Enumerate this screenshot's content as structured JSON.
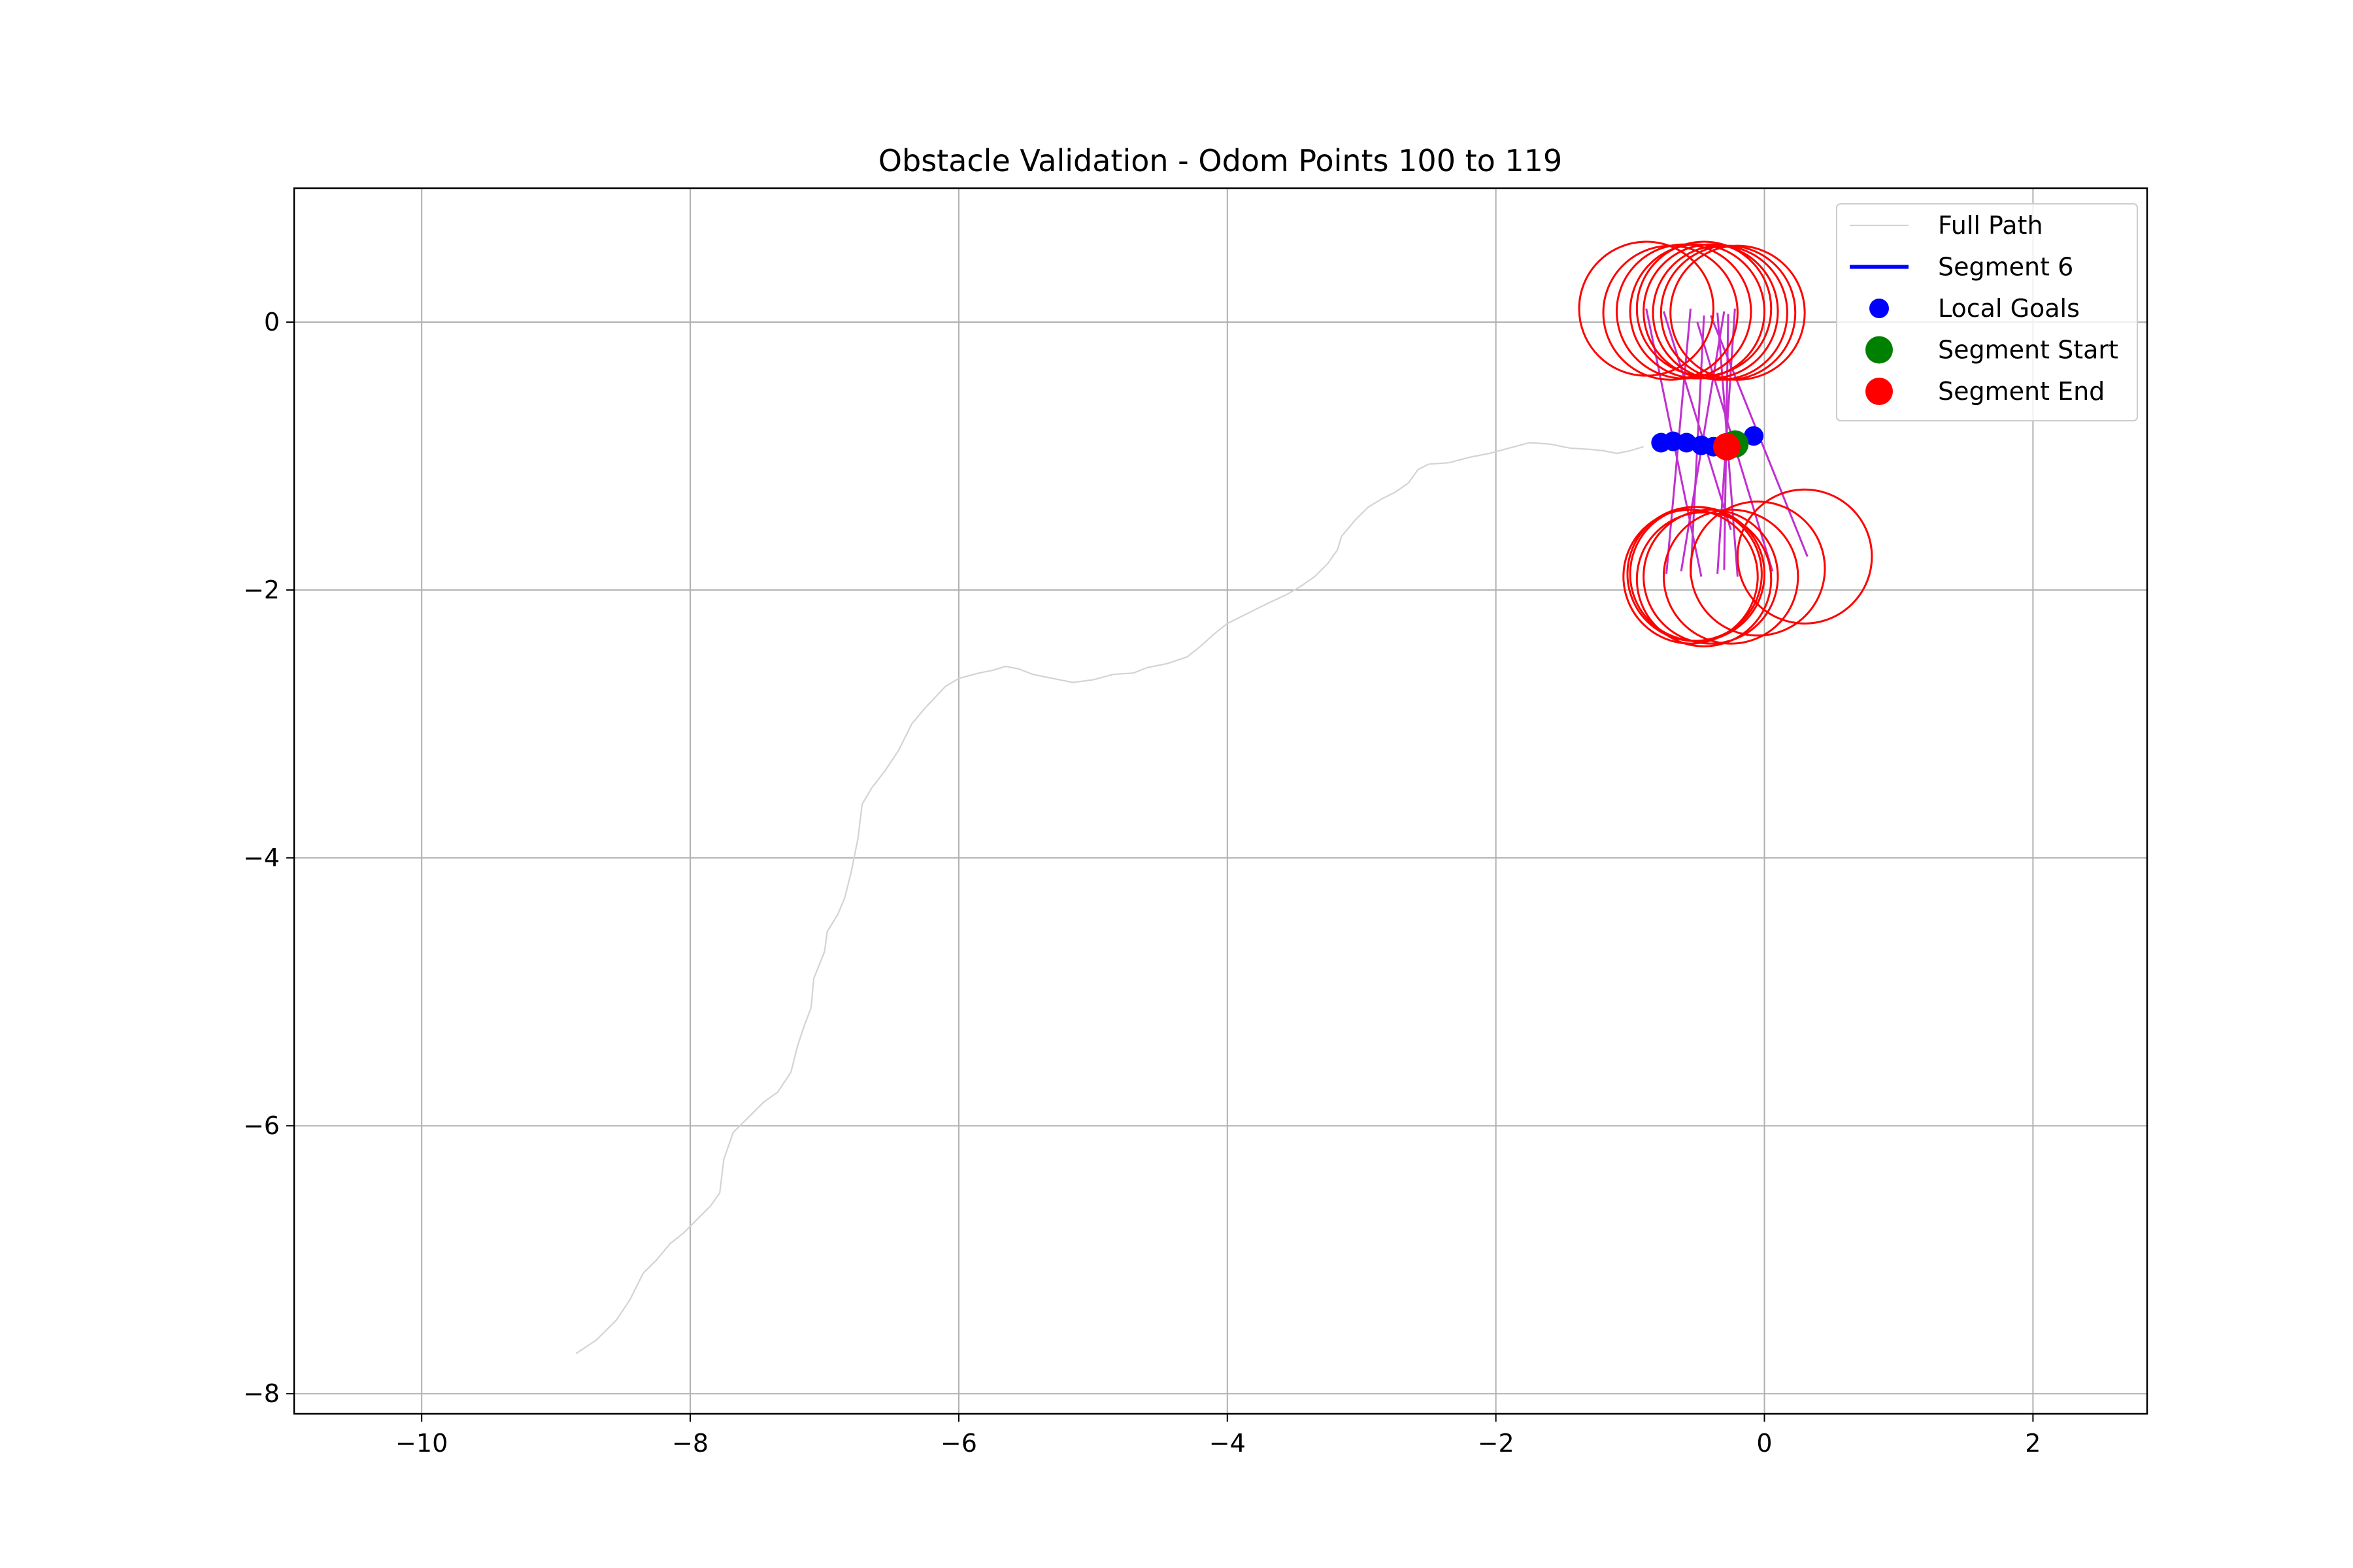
{
  "chart_data": {
    "type": "scatter",
    "title": "Obstacle Validation - Odom Points 100 to 119",
    "xlabel": "",
    "ylabel": "",
    "xlim": [
      -10.95,
      2.85
    ],
    "ylim": [
      -8.15,
      1.0
    ],
    "xticks": [
      -10,
      -8,
      -6,
      -4,
      -2,
      0,
      2
    ],
    "yticks": [
      0,
      -2,
      -4,
      -6,
      -8
    ],
    "xtick_labels": [
      "−10",
      "−8",
      "−6",
      "−4",
      "−2",
      "0",
      "2"
    ],
    "ytick_labels": [
      "0",
      "−2",
      "−4",
      "−6",
      "−8"
    ],
    "grid": true,
    "legend_placement": "top-right",
    "colors": {
      "full_path": "#d3d3d3",
      "segment": "#0000ff",
      "local_goals": "#0000ff",
      "segment_start": "#008000",
      "segment_end": "#ff0000",
      "obstacles": "#ff0000",
      "rays": "#c030d0",
      "grid": "#b0b0b0"
    },
    "legend": [
      {
        "label": "Full Path",
        "kind": "line",
        "color": "#d3d3d3"
      },
      {
        "label": "Segment 6",
        "kind": "line",
        "color": "#0000ff"
      },
      {
        "label": "Local Goals",
        "kind": "marker",
        "color": "#0000ff"
      },
      {
        "label": "Segment Start",
        "kind": "marker",
        "color": "#008000"
      },
      {
        "label": "Segment End",
        "kind": "marker",
        "color": "#ff0000"
      }
    ],
    "series": [
      {
        "name": "Full Path",
        "type": "line",
        "points": [
          [
            -8.85,
            -7.7
          ],
          [
            -8.7,
            -7.6
          ],
          [
            -8.55,
            -7.45
          ],
          [
            -8.45,
            -7.3
          ],
          [
            -8.35,
            -7.1
          ],
          [
            -8.25,
            -7.0
          ],
          [
            -8.15,
            -6.88
          ],
          [
            -8.05,
            -6.8
          ],
          [
            -7.95,
            -6.7
          ],
          [
            -7.85,
            -6.6
          ],
          [
            -7.78,
            -6.5
          ],
          [
            -7.75,
            -6.25
          ],
          [
            -7.68,
            -6.05
          ],
          [
            -7.55,
            -5.92
          ],
          [
            -7.45,
            -5.82
          ],
          [
            -7.35,
            -5.75
          ],
          [
            -7.25,
            -5.6
          ],
          [
            -7.2,
            -5.4
          ],
          [
            -7.15,
            -5.25
          ],
          [
            -7.1,
            -5.12
          ],
          [
            -7.08,
            -4.9
          ],
          [
            -7.0,
            -4.7
          ],
          [
            -6.98,
            -4.55
          ],
          [
            -6.9,
            -4.42
          ],
          [
            -6.85,
            -4.3
          ],
          [
            -6.8,
            -4.1
          ],
          [
            -6.75,
            -3.85
          ],
          [
            -6.72,
            -3.6
          ],
          [
            -6.65,
            -3.48
          ],
          [
            -6.55,
            -3.35
          ],
          [
            -6.45,
            -3.2
          ],
          [
            -6.35,
            -3.0
          ],
          [
            -6.25,
            -2.88
          ],
          [
            -6.1,
            -2.72
          ],
          [
            -6.0,
            -2.66
          ],
          [
            -5.85,
            -2.62
          ],
          [
            -5.75,
            -2.6
          ],
          [
            -5.65,
            -2.57
          ],
          [
            -5.55,
            -2.59
          ],
          [
            -5.45,
            -2.63
          ],
          [
            -5.3,
            -2.66
          ],
          [
            -5.15,
            -2.69
          ],
          [
            -5.0,
            -2.67
          ],
          [
            -4.85,
            -2.63
          ],
          [
            -4.7,
            -2.62
          ],
          [
            -4.6,
            -2.58
          ],
          [
            -4.45,
            -2.55
          ],
          [
            -4.3,
            -2.5
          ],
          [
            -4.2,
            -2.42
          ],
          [
            -4.1,
            -2.33
          ],
          [
            -4.0,
            -2.25
          ],
          [
            -3.9,
            -2.2
          ],
          [
            -3.8,
            -2.15
          ],
          [
            -3.7,
            -2.1
          ],
          [
            -3.55,
            -2.03
          ],
          [
            -3.45,
            -1.97
          ],
          [
            -3.35,
            -1.9
          ],
          [
            -3.25,
            -1.8
          ],
          [
            -3.18,
            -1.7
          ],
          [
            -3.15,
            -1.6
          ],
          [
            -3.05,
            -1.48
          ],
          [
            -2.95,
            -1.38
          ],
          [
            -2.85,
            -1.32
          ],
          [
            -2.75,
            -1.27
          ],
          [
            -2.65,
            -1.2
          ],
          [
            -2.58,
            -1.1
          ],
          [
            -2.5,
            -1.06
          ],
          [
            -2.35,
            -1.05
          ],
          [
            -2.2,
            -1.01
          ],
          [
            -2.05,
            -0.98
          ],
          [
            -1.9,
            -0.94
          ],
          [
            -1.75,
            -0.9
          ],
          [
            -1.6,
            -0.91
          ],
          [
            -1.45,
            -0.94
          ],
          [
            -1.3,
            -0.95
          ],
          [
            -1.2,
            -0.96
          ],
          [
            -1.1,
            -0.98
          ],
          [
            -1.0,
            -0.96
          ],
          [
            -0.9,
            -0.93
          ]
        ]
      },
      {
        "name": "Segment 6",
        "type": "line",
        "points": [
          [
            -0.77,
            -0.9
          ],
          [
            -0.68,
            -0.89
          ],
          [
            -0.58,
            -0.9
          ],
          [
            -0.47,
            -0.92
          ],
          [
            -0.38,
            -0.93
          ],
          [
            -0.3,
            -0.94
          ],
          [
            -0.22,
            -0.92
          ],
          [
            -0.16,
            -0.89
          ],
          [
            -0.08,
            -0.85
          ]
        ]
      },
      {
        "name": "Local Goals",
        "type": "scatter",
        "points": [
          [
            -0.77,
            -0.9
          ],
          [
            -0.68,
            -0.89
          ],
          [
            -0.58,
            -0.9
          ],
          [
            -0.47,
            -0.92
          ],
          [
            -0.38,
            -0.93
          ],
          [
            -0.3,
            -0.94
          ],
          [
            -0.22,
            -0.91
          ],
          [
            -0.08,
            -0.85
          ]
        ]
      },
      {
        "name": "Segment Start",
        "type": "scatter",
        "points": [
          [
            -0.22,
            -0.91
          ]
        ]
      },
      {
        "name": "Segment End",
        "type": "scatter",
        "points": [
          [
            -0.28,
            -0.93
          ]
        ]
      }
    ],
    "obstacles": [
      {
        "center": [
          -0.88,
          0.1
        ],
        "radius": 0.5
      },
      {
        "center": [
          -0.7,
          0.07
        ],
        "radius": 0.5
      },
      {
        "center": [
          -0.6,
          0.08
        ],
        "radius": 0.5
      },
      {
        "center": [
          -0.5,
          0.08
        ],
        "radius": 0.5
      },
      {
        "center": [
          -0.45,
          0.1
        ],
        "radius": 0.5
      },
      {
        "center": [
          -0.4,
          0.08
        ],
        "radius": 0.5
      },
      {
        "center": [
          -0.33,
          0.07
        ],
        "radius": 0.5
      },
      {
        "center": [
          -0.27,
          0.07
        ],
        "radius": 0.5
      },
      {
        "center": [
          -0.2,
          0.07
        ],
        "radius": 0.5
      },
      {
        "center": [
          -0.52,
          -1.88
        ],
        "radius": 0.5
      },
      {
        "center": [
          -0.55,
          -1.9
        ],
        "radius": 0.5
      },
      {
        "center": [
          -0.5,
          -1.88
        ],
        "radius": 0.5
      },
      {
        "center": [
          -0.45,
          -1.92
        ],
        "radius": 0.5
      },
      {
        "center": [
          -0.4,
          -1.9
        ],
        "radius": 0.5
      },
      {
        "center": [
          -0.25,
          -1.9
        ],
        "radius": 0.5
      },
      {
        "center": [
          -0.05,
          -1.84
        ],
        "radius": 0.5
      },
      {
        "center": [
          0.3,
          -1.75
        ],
        "radius": 0.5
      }
    ],
    "rays": [
      [
        [
          -0.88,
          0.1
        ],
        [
          -0.47,
          -1.9
        ]
      ],
      [
        [
          -0.75,
          0.08
        ],
        [
          -0.25,
          -1.55
        ]
      ],
      [
        [
          -0.55,
          0.1
        ],
        [
          -0.73,
          -1.88
        ]
      ],
      [
        [
          -0.45,
          0.05
        ],
        [
          -0.55,
          -1.9
        ]
      ],
      [
        [
          -0.5,
          0.0
        ],
        [
          0.06,
          -1.86
        ]
      ],
      [
        [
          -0.4,
          0.05
        ],
        [
          0.32,
          -1.75
        ]
      ],
      [
        [
          -0.35,
          0.07
        ],
        [
          -0.2,
          -1.9
        ]
      ],
      [
        [
          -0.3,
          0.08
        ],
        [
          -0.62,
          -1.86
        ]
      ],
      [
        [
          -0.22,
          0.1
        ],
        [
          -0.35,
          -1.88
        ]
      ],
      [
        [
          -0.27,
          0.06
        ],
        [
          -0.3,
          -1.85
        ]
      ]
    ]
  }
}
